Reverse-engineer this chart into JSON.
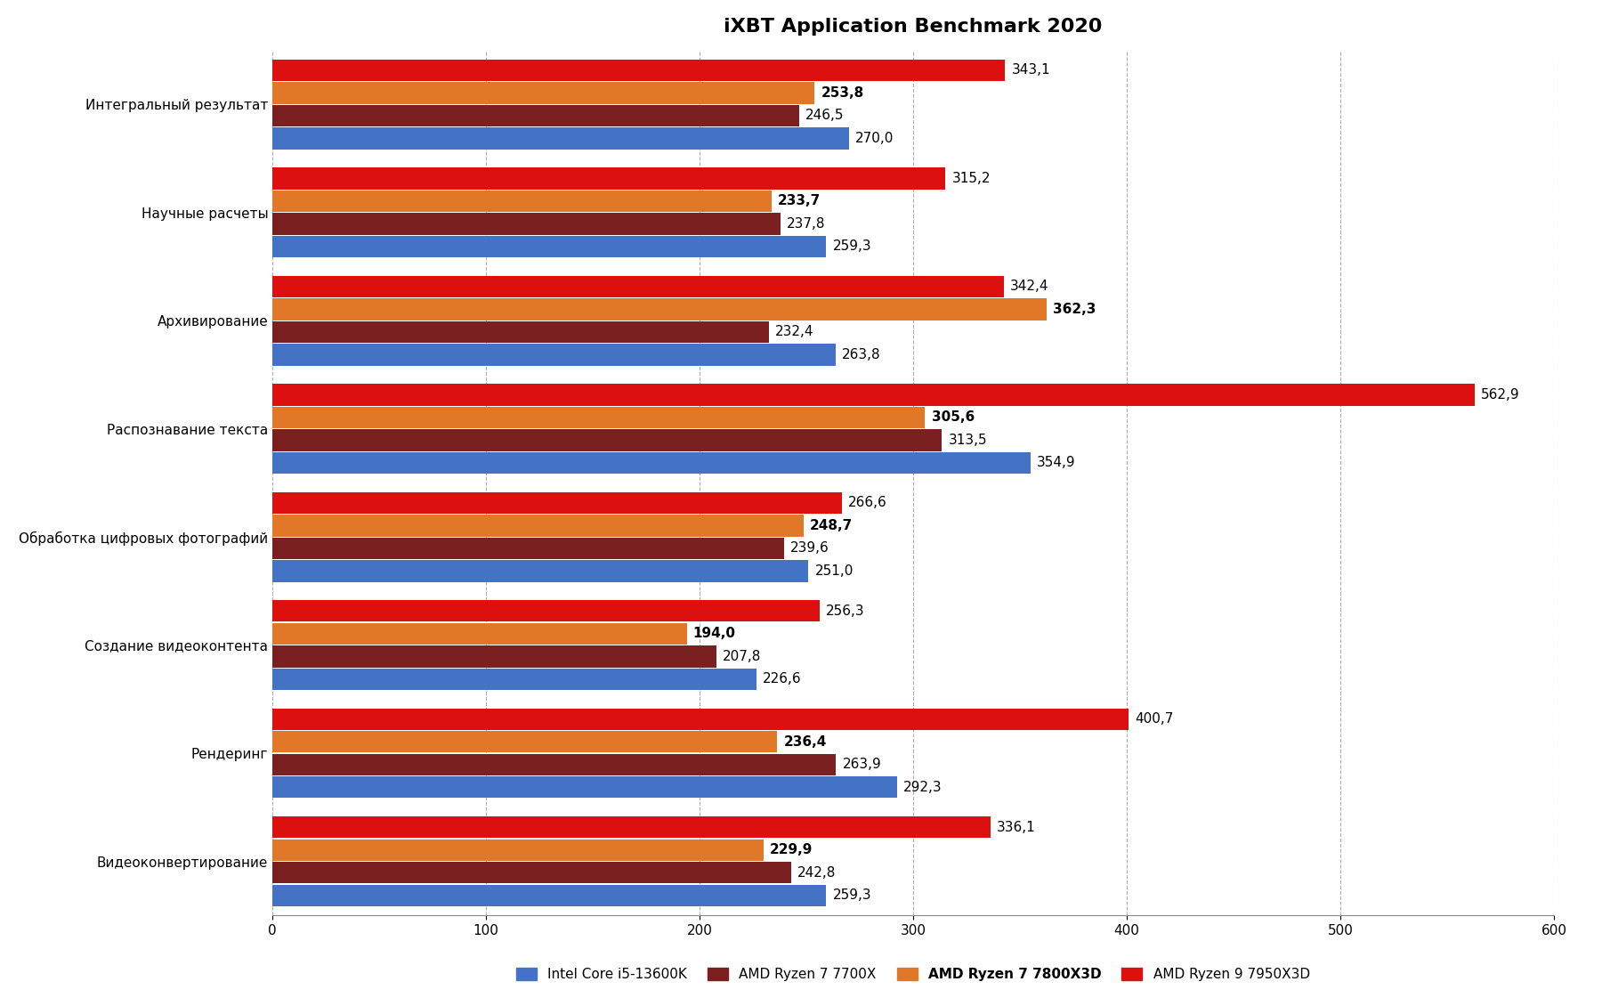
{
  "title": "iXBT Application Benchmark 2020",
  "categories": [
    "Интегральный результат",
    "Научные расчеты",
    "Архивирование",
    "Распознавание текста",
    "Обработка цифровых фотографий",
    "Создание видеоконтента",
    "Рендеринг",
    "Видеоконвертирование"
  ],
  "series": [
    {
      "name": "Intel Core i5-13600K",
      "color": "#4472c4",
      "values": [
        270.0,
        259.3,
        263.8,
        354.9,
        251.0,
        226.6,
        292.3,
        259.3
      ],
      "bold": false
    },
    {
      "name": "AMD Ryzen 7 7700X",
      "color": "#7b2020",
      "values": [
        246.5,
        237.8,
        232.4,
        313.5,
        239.6,
        207.8,
        263.9,
        242.8
      ],
      "bold": false
    },
    {
      "name": "AMD Ryzen 7 7800X3D",
      "color": "#e07828",
      "values": [
        253.8,
        233.7,
        362.3,
        305.6,
        248.7,
        194.0,
        236.4,
        229.9
      ],
      "bold": true
    },
    {
      "name": "AMD Ryzen 9 7950X3D",
      "color": "#dd1010",
      "values": [
        343.1,
        315.2,
        342.4,
        562.9,
        266.6,
        256.3,
        400.7,
        336.1
      ],
      "bold": false
    }
  ],
  "xlim": [
    0,
    600
  ],
  "xticks": [
    0,
    100,
    200,
    300,
    400,
    500,
    600
  ],
  "background_color": "#ffffff",
  "grid_color": "#b0b0b0",
  "title_fontsize": 16,
  "label_fontsize": 11,
  "tick_fontsize": 11,
  "legend_fontsize": 11,
  "bar_height": 0.2,
  "bar_gap": 0.01
}
